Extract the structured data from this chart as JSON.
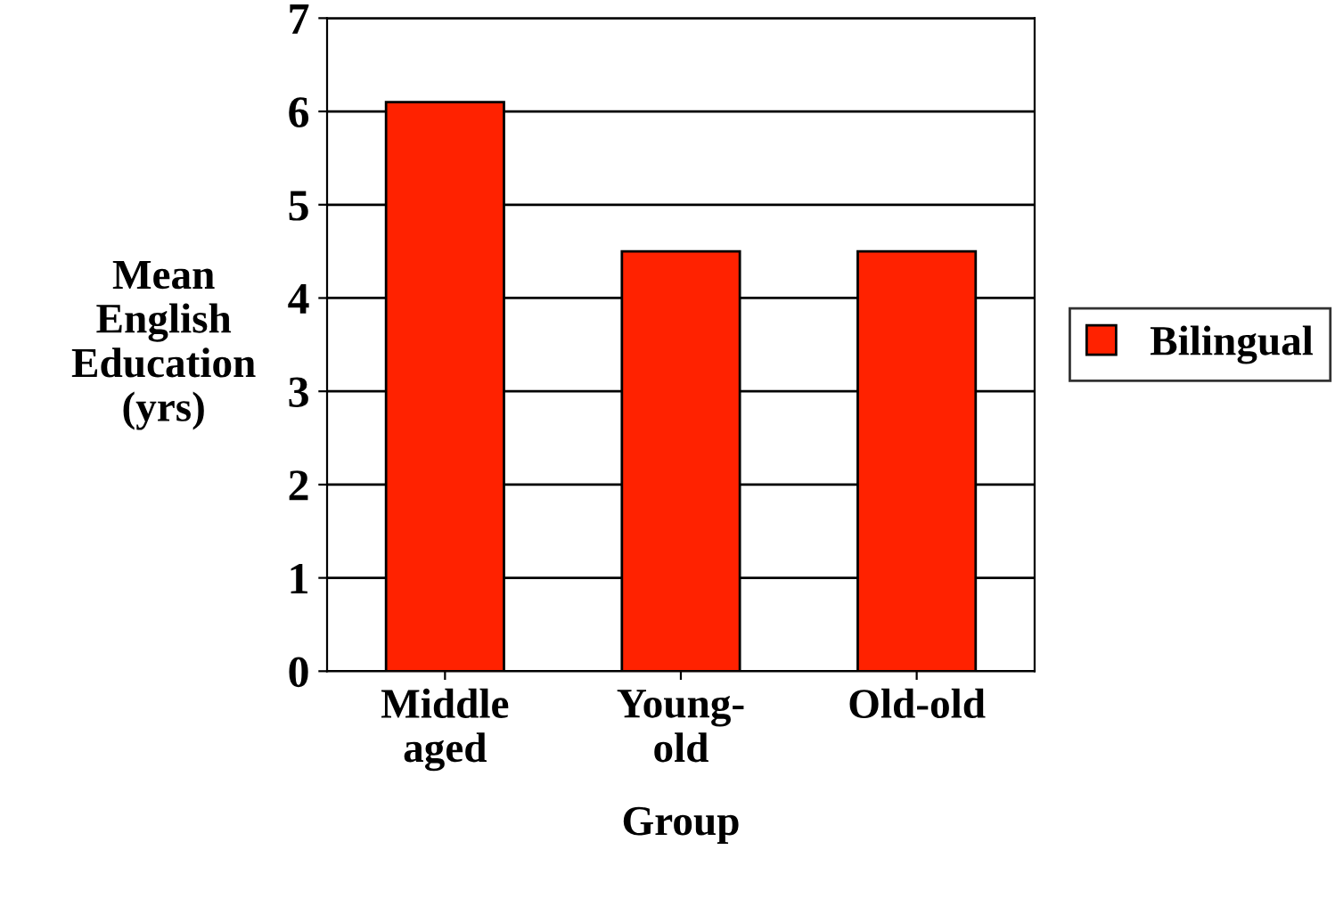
{
  "chart_data": {
    "type": "bar",
    "xlabel": "Group",
    "ylabel": "Mean\nEnglish\nEducation\n(yrs)",
    "categories": [
      "Middle\naged",
      "Young-\nold",
      "Old-old"
    ],
    "series": [
      {
        "name": "Bilingual",
        "color": "#ff2200",
        "values": [
          6.1,
          4.5,
          4.5
        ]
      }
    ],
    "ylim": [
      0,
      7
    ],
    "yticks": [
      0,
      1,
      2,
      3,
      4,
      5,
      6,
      7
    ],
    "grid": "y",
    "legend": "right"
  }
}
